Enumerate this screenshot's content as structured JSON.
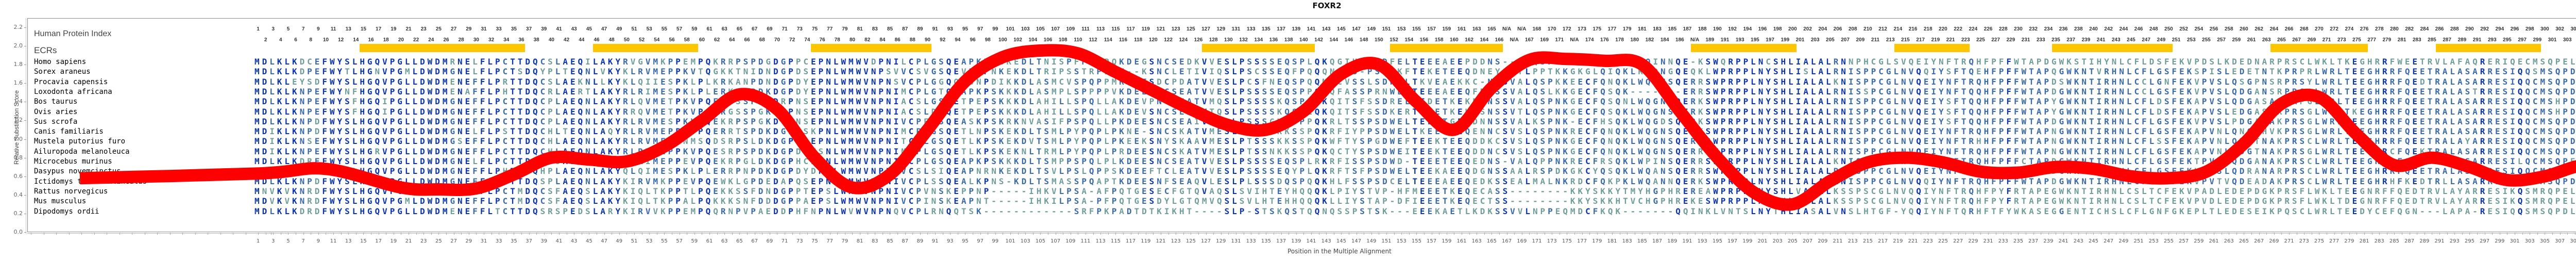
{
  "title": "FOXR2",
  "ylabel": "Relative Substitution Score",
  "xlabel": "Position in the Multiple Alignment",
  "labels": {
    "hpi": "Human Protein Index",
    "ecrs": "ECRs"
  },
  "colors": {
    "curve": "#ff0000",
    "ecr": "#ffc600",
    "residue_dark": "#0b35a8",
    "residue_mid": "#3a6aa8",
    "residue_light": "#6f9e9a"
  },
  "species": [
    "Homo sapiens",
    "Sorex araneus",
    "Procavia capensis",
    "Loxodonta africana",
    "Bos taurus",
    "Ovis aries",
    "Sus scrofa",
    "Canis familiaris",
    "Mustela putorius furo",
    "Ailuropoda melanoleuca",
    "Microcebus murinus",
    "Dasypus novemcinctus",
    "Ictidomys tridecemlineatus",
    "Rattus norvegicus",
    "Mus musculus",
    "Dipodomys ordii"
  ],
  "sequences": [
    "MDLKLKDCEFWYSLHGQVPGLLDWDMRNELFLPCTTDQCSLAEQILAKYRVGVMKPPEMPQKRRPSPDGDGPPCEPNLWMWVDPNILCPLGSQEAPKPSGKEDLTNISPFPQPPQKDEGSNCSEDKVVESLPSSSSEQSPLQKQGIHSPSDFELTEEEAEEPDDNS---LQSPEM-KCYQSQKLWQINNQE-KSWQRPPLNCSHLIALALRNNPHCGLSVQEIYNFTRQHFPFFWTAPDGWKSTIHYNLCFLDSFEKVPDSLKDEDNARPRSCLWKLTKEGHRRFWEETRVLAFAQRERIQECMSQPELLTSLFDL",
    "MDLKLKDPEFWYTLHGNVPGMLDWDMGNELFLPCTSDQYPLTEQNLVKYKLRVMEPPKVTQGKKTNIDNDGPDSEPNLWMWVNPSVVCSVGSQEVPKPNKEKDLTRIPSSTRPLPK--KSNCLETIVIQSLPSCSSEQFPQQQNFTS-PSNWKFTEKETEEQDNEYSVTLPPTKKGKGLQIQKLRQDNGQEQKLWPRPPLNYSHLISLALRNISPPCGLNVQQIYSFTQEHFPFFWTAPQGWKNTVRHNLCFLGSFEKSPISLEDETNTKPRPRLWRLTEEGHRRFQEETRALASARRESIQQSMSQPDVMTSLFDL",
    "MDLKLEYSDFWYSLHGQVPGLLDWDMENEFFLPRTTDQCSLAEKNLLKYKLQIIESPKLPLKRKANPDNDGPDYEPNLWMWVNPNSVCPLGGQQASNPDIKKDLASMCVSPQPPMKNEESDCPDATVVESLPCSFNEQSPQQMQCVSSLSDWELTKVEAEKKC-NPSVALQSPKKEECFQNQKLWQTNSQERRSWPRPPLNYSHLIALALKNISPPCGLNVQEIYNFTRQHFPFFWTAPDSWKNTIRHNLCCLGNFEKVPVSLQSGPNSRPRSYLWRLTEEGHRRFQEDTRALASARRESIQQCMSQPDVMTSLFDL",
    "MDLKLKNPEFWYNFHGQVPGLLDWDMENAFFLPHTTDQCRLAERTLAKYRLRIMESPKLPLERKPSPDKDGPDYEPNLWMWVNPNIMCPLGTQEAPKPSKKKDLASMPLSPPPPVKDEESNCSEATVVESLPSSSSEQSPPQKQFASSPRNWELTEEEAEEQFDNSSVALQSLKKGECFQSQK-------ERRSWPRPPLNYSHLIALALRNISSPCGLNVQEIYNFTQQHFPFFWTAPDGWKNTIRHNLCCLGSFEKVPVSLQDGANSRPRSSLWRLTEEGHRRFQEETRALASTRRESIQQCMSQPDVMTSLFDL",
    "MDLKLKNPEFWYSFHGQIPGLLDWDMGNEFFLPCTTDQCPLAEQNLAKYRLQVMETPKVPQERGSSPGKDRPNSEPNLWMWVNPNIACSLGSQETPEPSKKKDLAHILLSPQLLAKDEVPNCSEATVMQSLPSSSSKQSPLQKQITSFSSDRELTEDETKEKDSNSSVALQSPNKGECFQSQNLWQGNSQERKSWPRPPLNYSHLIALALRNISPPCGLNVQEIYSFTQQHFPFFWTAPYGWKNTIRHNLCFLDSFEKAPVSLQDGASARPRPGLWRLTEEGHRRFQEETRALASARRESIQQCMSHPDVMTSLFDL",
    "MDLKLKNPEFWYSFHGQIPGLLDWDMGNEFFLPCTTDQCPLAEQNLAKYRRQVMETPKVPQERGSSPGKDHPNSEPNLWMWVNPNIACSLDSQETPEPSKKKDLAHILLSPQLLAKDEVSNCSEATVTQSLPSSSSKQSPLQKQITSFSSDKERTEDETKEKNSNSSVTLQSPNKGECFQSQKLWQGNSQERKSWPRPPLNYSHLIALALRNISPPCGLNVQEIYSFTQQHFPFFWTAPYGWKNTIRHNLCFLDSFEKAPVSLEDGASARPRSGLWRLTKEGHRRFQEETRALASARRESIQQCMSHPDVMTSLFDL",
    "MDLKLKNPDFWYSLHGQVPGLLDWDMGNEFFLPCTTDQCPLAEQNLAKYRLRVMESPKVPQEKRPSPGKDGPNSEPNLWMWVNPNIVCPFGSQEASKPSKRKNVASIFPSPQLLPKDEESNCSEAIVMESLPSSSGKQSPPQKRLTSSPSDWELTEEETGEQDNNSSVALKSPNK-ECFHSQKLWQGDSQERKSWPRPPLNYSHLIALALRNISPPCGLNVQEIYSFTQQHFPFFWTAPDGWKNTIRHNLCFLGSFEKVPVSLPDGANAKPRSGLWRLTEEGHRRFQEETRALASARRESIQQCMSQPDVMTSLFGL",
    "MDIKLKNPDFWYSLHGQVPGLLDWDMGNELFLPSTTDQCHLTEQNLAQYRLRVMEPPKVPQERRTSPDKDGPDSKPNLWMWVNPNIMCPLGSQETLNPSKEKDLTSMLPYPQPLPKNE-SNCSKATVMESLTASSSKKSSPQKRFIYPPSDWELTKEETEEQENNCSVSLQSPNKRECFQNQKLWQGNSQERKSWPRPPLNYSHLIALALRNISPPCGLNVQEIYNFTRQHFPFFWTAPNGWKNTIRHNLCFLGSFEKAPVNLQNGTHVKPRSGLWRLTEEGHRRFQEETRALASARRESIQQCMSQPDVMTSLFGL",
    "MDIKLKNSEFWYSLHGQVPGLLDWDMGSEFFLPCTTDQCHLAEQNLAKYRLRVMEPPNMSQDSRPSLDKDGPDSEPNLWMWVNPNITCPLGSQETLKPSKEKDVTSMLPYPQPLPKEEKSNYSKAAVMESLPTSSSKKSSPQKWFTYSPGDWEFTEEKTEEQDDKCSVSLQSPNKGECFQNQKLWQGNSQERRSWPRPPLNYSHLIALALRNISPPCGLNVQEIYNFTRHHFPFFWTAPNGWKNTIRHNLCFLSSFEKAPVNLQNGTNAKPRSCLWRLTEEGHRRFQEETRALAYARRESIQQCMSQPDVITSLFGL",
    "MDIKLKNPEFWYSLHGRVPGLLDWDMGNEFFLPCTTDQCHLAEQNLAKYRLRVMEPPKVPQESRPSPDKDGPDCESNLWMWVNPNIMCPLGSQETLKPSKEKNLTRMLPYPQPLPRDEESNCSKATVMESLPTSSNKKSSPQKQCTYSPSDWEITEEKTEEQDDNCSVSLQSPNKGECFQNQKLWQGNSQERRSWPRPPLNYSHLIALALRNISPPCGLNVQEIYNFTRQHFPFFWTAPNGWKNTIRHNLCFLGSFEKAPVNLQDGTNAKPRSGLWRLTEEGHRCFQEKTRALASARRESIQQCMSQPDVMTALFGL",
    "MDLKLKDREFWYSLHGQVPGLLDWDMGNELFLPCTTDQQPSAEQHLAKYRLRIMEPPEVPQEKRPGLDKDGPHCEPNLWMWVNPNIVCPLGSQEAPKPSKKKDLTSMPPSPQLPLKDEESNCSEATVVESLPSSSSEQSPLRKRFISSPSDWD-TEEETEEQEDNS-VALQPPNKRECFRSQKLWPINSQERRSWPRPPLNYSHLIALALKNISPPCGLNVQEIYNFTRQHFPFFCTAPDGWKNTIRHNLCFLGSFEKTPVSPQDGANAKPRSCLWRLTEEGHRRFQEETRSLASARRESILQCMSQPEVMTSLFDL",
    "MDLKLKNLEFWYSLHGQVPGLLDWDMGNEFFLPHTTDQHPLAEQNLAKYQLQIMESPKLPLERRPNPDKDGPDYDPNLWMWVNPNIVCSLSIQEAPNRNKEKDLTSVLPSLQPPSKDEEFTCLEATVVESLPSSSSEQYPLQKRFTSFPSDWELTEEKAEEQDGNSSAALRSPDKGKCYQSQKLWQANSQERRSWPRPPLNYSHLIALALRNISPPCGLNVQEIYNFTRQHFPFFWTAPDGWKNTIRHNLCFLGSFEKVPVSLQDRANARPRSCLWRLTEEGHRRFQEETRALASARRESIQQCMSRPDVMTFLFDL",
    "MDLKLKNPDFWYSLHGHVPGLLDWDMGNEFFLPCTTDQSPLAEQNLAKYKIRVMKPPEVPQEWKLGPDEDAPQSEPNLWMWVNPNIVCPLSSQEALKPNS-KDLTSMASSPQAPTKDEESNFSEAQVLESLPLSSSDQSPQQKHLFSSPSDCELTEEEAEEQEDKSSEALMALNKRDCFQKPKLWQANNQERKSWPRPPLNYSHLIALALRNISPPCGLNVQQIYNFTRQHFPFFWTAPDGWKNTIRHNLCFLGSFEKVPVTVQDEADAKPRSCLWRLTEEGHRHFKEDTRLLASARRESIQQCMSQPDLMSSLFDL",
    "MNVKVKNRDFWYSLHGQVPGMLDWDMGNEFFLPCTMDQCSFAEQSLAKYKIQLTKPPTLPQEKKSSFDNDGPPTEPSLWMWVNPNIVCPVNSKEPPNP-----IHKVLPSA-AFPQTGESECFGTQVAQSLSVIHTEYHQQQKLPIYSTVP-HFMEEETKEQECASS--------KKYSKKYTMYHGPHREREAWPRPPLNYSHLVALALKSSPSCGLNVQQIYNFTRQHFPYFRTAPEGWKNTIRHNLCSLTCFEKVPADLEDEPDGKPRSFLWKLTEEGNRFFQEDTRVLAYARRESIKQSMRQPELIDLLFHL",
    "MDVKVKNRDFWYSLHGQVPGMLDWDMGNEFFLPCTMDQCSFAEQSLAKYKIQLTKPPALPQKKKSNFDDDGPPAEPSLWMWVNPNIVCPINSKEAPNT-----IHKILPSA-PFPQTGESDYLGTQMVQSLSVLHTEHHQQQKLLIYSTAP-DFIEEETKEQECTSS--------KKYSKKHTVCHGPHREKESWPRPPLNYSHLVALALKSSPSCGLNVQQIYNFTRQHFPYFRTAPEGWKNTIRHNLCSLTCFEKVPVDLEDEPDGKPRSFLWKLTDEGNRFFQEDTRVLAYARRESIKQSMRQPELIDLLFHL",
    "MDLKLKDRDFWYSLHGQVPGLLDWDMENEFFLTCTTDQSRSPEDSLARYKIRVVKPPEMPQQRNPVPAEDDPHFNPNLWVWVNPNQVCPLRNQQTSK------------SRFPKPADTDTKIKHT----SLP-STSKQSTQQNQSSPSTSK---EEEKAETLKDKSSVVLNPPEQMDCFKQK-------QQINKLVNTSLNYTHLIASALVNSLHTGF-YQQIYNFTQRHFTFYWKASEGGENTICHSLCFLGNFGKEPLTLEDESEIKPQSCLWRLTEEDYCEFQGN---LAPA-RESIQQSMSQPDLMASSFHF"
  ],
  "human_protein_index": {
    "odd_row_sample": [
      "1",
      "3",
      "5",
      "7",
      "9",
      "11",
      "13",
      "15",
      "17",
      "19",
      "21",
      "23",
      "25",
      "27",
      "29",
      "31"
    ],
    "even_row_sample": [
      "2",
      "4",
      "6",
      "8",
      "10",
      "12",
      "14",
      "16",
      "18",
      "20",
      "22",
      "24",
      "26",
      "28",
      "30"
    ],
    "gap_columns_label": "N/A",
    "last_index": 311,
    "top_row": [
      "1",
      "3",
      "5",
      "7",
      "9",
      "11",
      "13",
      "15",
      "17",
      "19",
      "21",
      "23",
      "25",
      "27",
      "29",
      "31",
      "33",
      "35",
      "37",
      "39",
      "41",
      "43",
      "45",
      "47",
      "49",
      "51",
      "53",
      "55",
      "57",
      "59",
      "61",
      "63",
      "65",
      "67",
      "69",
      "71",
      "73",
      "75",
      "77",
      "79",
      "81",
      "83",
      "85",
      "87",
      "89",
      "91",
      "93",
      "95",
      "97",
      "99",
      "101",
      "103",
      "105",
      "107",
      "109",
      "111",
      "113",
      "115",
      "117",
      "119",
      "121",
      "123",
      "125",
      "127",
      "129",
      "131",
      "133",
      "135",
      "137",
      "139",
      "141",
      "143",
      "145",
      "147",
      "149",
      "151",
      "153",
      "155",
      "157",
      "159",
      "161",
      "163",
      "165",
      "N/A",
      "N/A",
      "168",
      "170",
      "172",
      "173",
      "175",
      "177",
      "179",
      "181",
      "183",
      "185",
      "187",
      "188",
      "190",
      "192",
      "194",
      "196",
      "198",
      "200",
      "202",
      "204",
      "206",
      "208",
      "210",
      "212",
      "214",
      "216",
      "218",
      "220",
      "222",
      "224",
      "226",
      "228",
      "230",
      "232",
      "234",
      "236",
      "238",
      "240",
      "242",
      "244",
      "246",
      "248",
      "250",
      "252",
      "254",
      "256",
      "258",
      "260",
      "262",
      "264",
      "266",
      "268",
      "270",
      "272",
      "274",
      "276",
      "278",
      "280",
      "282",
      "284",
      "286",
      "288",
      "290",
      "292",
      "294",
      "296",
      "298",
      "300",
      "302",
      "304",
      "306",
      "308",
      "310"
    ],
    "bottom_row": [
      "2",
      "4",
      "6",
      "8",
      "10",
      "12",
      "14",
      "16",
      "18",
      "20",
      "22",
      "24",
      "26",
      "28",
      "30",
      "32",
      "34",
      "36",
      "38",
      "40",
      "42",
      "44",
      "46",
      "48",
      "50",
      "52",
      "54",
      "56",
      "58",
      "60",
      "62",
      "64",
      "66",
      "68",
      "70",
      "72",
      "74",
      "76",
      "78",
      "80",
      "82",
      "84",
      "86",
      "88",
      "90",
      "92",
      "94",
      "96",
      "98",
      "100",
      "102",
      "104",
      "106",
      "108",
      "110",
      "112",
      "114",
      "116",
      "118",
      "120",
      "122",
      "124",
      "126",
      "128",
      "130",
      "132",
      "134",
      "136",
      "138",
      "140",
      "142",
      "144",
      "146",
      "148",
      "150",
      "152",
      "154",
      "156",
      "158",
      "160",
      "162",
      "164",
      "166",
      "N/A",
      "167",
      "169",
      "171",
      "N/A",
      "174",
      "176",
      "178",
      "180",
      "182",
      "184",
      "186",
      "N/A",
      "189",
      "191",
      "193",
      "195",
      "197",
      "199",
      "201",
      "203",
      "205",
      "207",
      "209",
      "211",
      "213",
      "215",
      "217",
      "219",
      "221",
      "223",
      "225",
      "227",
      "229",
      "231",
      "233",
      "235",
      "237",
      "239",
      "241",
      "243",
      "245",
      "247",
      "249",
      "251",
      "253",
      "255",
      "257",
      "259",
      "261",
      "263",
      "265",
      "267",
      "269",
      "271",
      "273",
      "275",
      "277",
      "279",
      "281",
      "283",
      "285",
      "287",
      "289",
      "291",
      "293",
      "295",
      "297",
      "299",
      "301",
      "303",
      "305",
      "307",
      "309",
      "311"
    ]
  },
  "chart_data": {
    "type": "line",
    "title": "FOXR2",
    "xlabel": "Position in the Multiple Alignment",
    "ylabel": "Relative Substitution Score",
    "ylim": [
      0.0,
      2.2
    ],
    "xlim": [
      1,
      317
    ],
    "yticks": [
      "0.0",
      "0.2",
      "0.4",
      "0.6",
      "0.8",
      "1.0",
      "1.2",
      "1.4",
      "1.6",
      "1.8",
      "2.0",
      "2.2"
    ],
    "xticks_step": 2,
    "grid": false,
    "legend": null,
    "series": [
      {
        "name": "Relative Substitution Score",
        "x": [
          1,
          10,
          20,
          25,
          30,
          35,
          40,
          45,
          50,
          55,
          60,
          65,
          70,
          75,
          80,
          85,
          90,
          95,
          100,
          105,
          110,
          115,
          120,
          125,
          130,
          135,
          140,
          145,
          150,
          155,
          160,
          165,
          170,
          175,
          180,
          185,
          190,
          195,
          200,
          205,
          210,
          215,
          220,
          225,
          230,
          235,
          240,
          245,
          250,
          255,
          260,
          265,
          270,
          275,
          280,
          285,
          290,
          295,
          300,
          305,
          310,
          317
        ],
        "y": [
          0.63,
          0.68,
          0.48,
          0.46,
          0.47,
          0.62,
          0.8,
          0.78,
          0.76,
          0.92,
          1.2,
          1.48,
          1.32,
          0.8,
          0.48,
          0.62,
          1.1,
          1.62,
          1.88,
          1.95,
          1.92,
          1.72,
          1.52,
          1.32,
          1.15,
          1.1,
          1.3,
          1.7,
          1.8,
          1.4,
          1.1,
          1.55,
          1.85,
          1.86,
          1.84,
          1.8,
          1.3,
          0.8,
          0.42,
          0.3,
          0.55,
          0.75,
          0.8,
          0.75,
          0.65,
          0.64,
          0.7,
          0.68,
          0.6,
          0.58,
          0.65,
          0.95,
          1.38,
          1.45,
          1.05,
          0.72,
          0.8,
          0.7,
          0.56,
          0.6,
          0.72,
          0.77
        ]
      }
    ],
    "ecr_regions": [
      [
        15,
        36
      ],
      [
        46,
        59
      ],
      [
        75,
        90
      ],
      [
        127,
        141
      ],
      [
        152,
        166
      ],
      [
        192,
        205
      ],
      [
        219,
        228
      ],
      [
        240,
        255
      ],
      [
        269,
        281
      ],
      [
        291,
        304
      ]
    ]
  }
}
